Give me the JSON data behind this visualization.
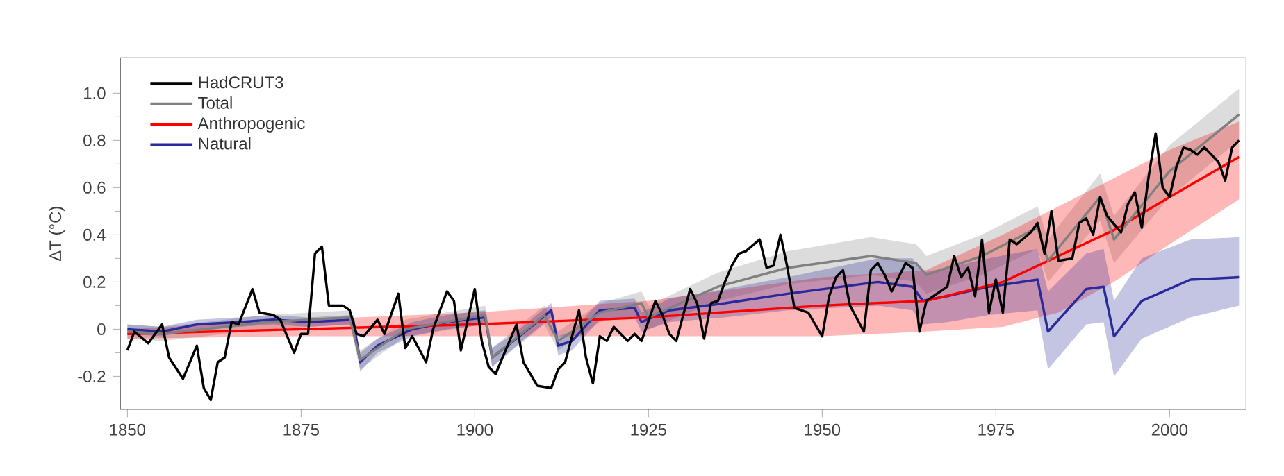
{
  "chart_data": {
    "type": "line",
    "ylabel": "ΔT (°C)",
    "xlim": [
      1849,
      2011
    ],
    "ylim": [
      -0.34,
      1.15
    ],
    "xticks": [
      1850,
      1875,
      1900,
      1925,
      1950,
      1975,
      2000
    ],
    "yticks": [
      -0.2,
      0,
      0.2,
      0.4,
      0.6,
      0.8,
      {
        "value": 1.0,
        "label": "1.0"
      }
    ],
    "legend": "top left",
    "marker": "none",
    "line_style": "solid",
    "series": [
      {
        "name": "HadCRUT3",
        "color": "#000000",
        "x": [
          1850,
          1851,
          1853,
          1855,
          1856,
          1858,
          1860,
          1861,
          1862,
          1863,
          1864,
          1865,
          1866,
          1868,
          1869,
          1871,
          1872,
          1874,
          1875,
          1876,
          1877,
          1878,
          1879,
          1880,
          1881,
          1882,
          1883,
          1884,
          1886,
          1887,
          1889,
          1890,
          1891,
          1893,
          1894,
          1896,
          1897,
          1898,
          1900,
          1901,
          1902,
          1903,
          1906,
          1907,
          1909,
          1911,
          1912,
          1913,
          1915,
          1916,
          1917,
          1918,
          1919,
          1920,
          1922,
          1923,
          1924,
          1926,
          1927,
          1928,
          1929,
          1931,
          1932,
          1933,
          1934,
          1935,
          1936,
          1937,
          1938,
          1939,
          1941,
          1942,
          1943,
          1944,
          1945,
          1946,
          1947,
          1948,
          1950,
          1951,
          1952,
          1953,
          1954,
          1956,
          1957,
          1958,
          1959,
          1960,
          1962,
          1963,
          1964,
          1965,
          1967,
          1968,
          1969,
          1970,
          1971,
          1972,
          1973,
          1974,
          1975,
          1976,
          1977,
          1978,
          1980,
          1981,
          1982,
          1983,
          1984,
          1986,
          1987,
          1988,
          1989,
          1990,
          1991,
          1993,
          1994,
          1995,
          1996,
          1997,
          1998,
          1999,
          2000,
          2001,
          2002,
          2003,
          2004,
          2005,
          2006,
          2007,
          2008,
          2009,
          2010
        ],
        "values": [
          -0.09,
          -0.01,
          -0.06,
          0.02,
          -0.12,
          -0.21,
          -0.07,
          -0.25,
          -0.3,
          -0.14,
          -0.12,
          0.03,
          0.02,
          0.17,
          0.07,
          0.06,
          0.04,
          -0.1,
          -0.02,
          -0.02,
          0.32,
          0.35,
          0.1,
          0.1,
          0.1,
          0.08,
          -0.02,
          -0.03,
          0.04,
          -0.02,
          0.15,
          -0.08,
          -0.03,
          -0.14,
          0.0,
          0.16,
          0.12,
          -0.09,
          0.17,
          -0.05,
          -0.16,
          -0.19,
          0.02,
          -0.14,
          -0.24,
          -0.25,
          -0.17,
          -0.14,
          0.08,
          -0.12,
          -0.23,
          -0.03,
          -0.05,
          0.01,
          -0.05,
          -0.02,
          -0.05,
          0.12,
          0.06,
          -0.02,
          -0.05,
          0.17,
          0.11,
          -0.04,
          0.11,
          0.12,
          0.2,
          0.27,
          0.32,
          0.33,
          0.38,
          0.26,
          0.27,
          0.4,
          0.26,
          0.09,
          0.08,
          0.07,
          -0.03,
          0.14,
          0.22,
          0.25,
          0.1,
          -0.01,
          0.25,
          0.28,
          0.23,
          0.16,
          0.28,
          0.26,
          -0.01,
          0.12,
          0.16,
          0.18,
          0.31,
          0.22,
          0.26,
          0.14,
          0.38,
          0.07,
          0.21,
          0.07,
          0.38,
          0.36,
          0.41,
          0.45,
          0.32,
          0.5,
          0.29,
          0.3,
          0.45,
          0.47,
          0.4,
          0.56,
          0.48,
          0.41,
          0.53,
          0.58,
          0.43,
          0.65,
          0.83,
          0.6,
          0.56,
          0.69,
          0.77,
          0.76,
          0.74,
          0.77,
          0.74,
          0.71,
          0.63,
          0.77,
          0.8
        ]
      },
      {
        "name": "Total",
        "color": "#808080",
        "x": [
          1850,
          1855,
          1870,
          1882,
          1883.5,
          1890,
          1901.5,
          1902.5,
          1910,
          1912,
          1918,
          1924,
          1925,
          1935,
          1945,
          1957,
          1963.5,
          1965,
          1973,
          1981,
          1982.5,
          1990,
          1992,
          2000,
          2010
        ],
        "values": [
          -0.01,
          -0.02,
          0.03,
          0.05,
          -0.13,
          0.0,
          0.06,
          -0.12,
          0.06,
          -0.05,
          0.07,
          0.11,
          0.05,
          0.18,
          0.26,
          0.31,
          0.28,
          0.23,
          0.31,
          0.43,
          0.29,
          0.56,
          0.38,
          0.67,
          0.91
        ],
        "lower": [
          -0.04,
          -0.05,
          0.0,
          0.02,
          -0.17,
          -0.03,
          0.02,
          -0.16,
          0.02,
          -0.09,
          0.03,
          0.06,
          0.0,
          0.12,
          0.19,
          0.23,
          0.2,
          0.15,
          0.23,
          0.34,
          0.2,
          0.46,
          0.28,
          0.56,
          0.8
        ],
        "upper": [
          0.02,
          0.01,
          0.06,
          0.08,
          -0.09,
          0.04,
          0.1,
          -0.08,
          0.1,
          -0.01,
          0.11,
          0.16,
          0.1,
          0.24,
          0.33,
          0.39,
          0.36,
          0.31,
          0.4,
          0.52,
          0.38,
          0.66,
          0.48,
          0.78,
          1.02
        ]
      },
      {
        "name": "Anthropogenic",
        "color": "#ff0000",
        "x": [
          1850,
          1875,
          1900,
          1925,
          1950,
          1965,
          1976,
          1984,
          1992,
          2000,
          2010
        ],
        "values": [
          -0.02,
          0.0,
          0.02,
          0.05,
          0.1,
          0.12,
          0.2,
          0.31,
          0.42,
          0.56,
          0.73
        ],
        "lower": [
          -0.04,
          -0.03,
          -0.03,
          -0.03,
          -0.03,
          -0.01,
          0.01,
          0.07,
          0.2,
          0.36,
          0.55
        ],
        "upper": [
          0.0,
          0.04,
          0.07,
          0.12,
          0.22,
          0.25,
          0.4,
          0.52,
          0.64,
          0.76,
          0.88
        ]
      },
      {
        "name": "Natural",
        "color": "#2a2a9c",
        "x": [
          1850,
          1855,
          1860,
          1866,
          1871,
          1876,
          1882.5,
          1883.5,
          1886,
          1891,
          1896,
          1901.5,
          1902.5,
          1906,
          1911,
          1912,
          1914,
          1918,
          1923,
          1924,
          1928,
          1936,
          1945,
          1958,
          1963,
          1964.5,
          1968,
          1974,
          1981,
          1982.5,
          1988,
          1990.5,
          1992,
          1996,
          2003,
          2010
        ],
        "values": [
          0.0,
          -0.01,
          0.02,
          0.03,
          0.04,
          0.03,
          0.04,
          -0.14,
          -0.07,
          0.0,
          0.03,
          0.05,
          -0.12,
          -0.04,
          0.08,
          -0.07,
          -0.05,
          0.08,
          0.09,
          0.03,
          0.08,
          0.11,
          0.15,
          0.2,
          0.18,
          0.12,
          0.14,
          0.18,
          0.21,
          -0.01,
          0.17,
          0.18,
          -0.03,
          0.12,
          0.21,
          0.22
        ],
        "lower": [
          -0.02,
          -0.03,
          0.0,
          0.01,
          0.02,
          0.01,
          0.02,
          -0.18,
          -0.1,
          -0.03,
          0.0,
          0.02,
          -0.16,
          -0.07,
          0.05,
          -0.11,
          -0.09,
          0.04,
          0.05,
          -0.01,
          0.03,
          0.05,
          0.08,
          0.1,
          0.08,
          0.02,
          0.03,
          0.06,
          0.08,
          -0.17,
          0.02,
          0.03,
          -0.2,
          -0.04,
          0.05,
          0.1
        ],
        "upper": [
          0.02,
          0.01,
          0.04,
          0.05,
          0.06,
          0.05,
          0.06,
          -0.1,
          -0.04,
          0.03,
          0.06,
          0.08,
          -0.08,
          -0.01,
          0.11,
          -0.03,
          -0.01,
          0.12,
          0.13,
          0.07,
          0.13,
          0.17,
          0.22,
          0.3,
          0.3,
          0.24,
          0.26,
          0.3,
          0.34,
          0.16,
          0.32,
          0.34,
          0.12,
          0.3,
          0.38,
          0.39
        ]
      }
    ]
  }
}
